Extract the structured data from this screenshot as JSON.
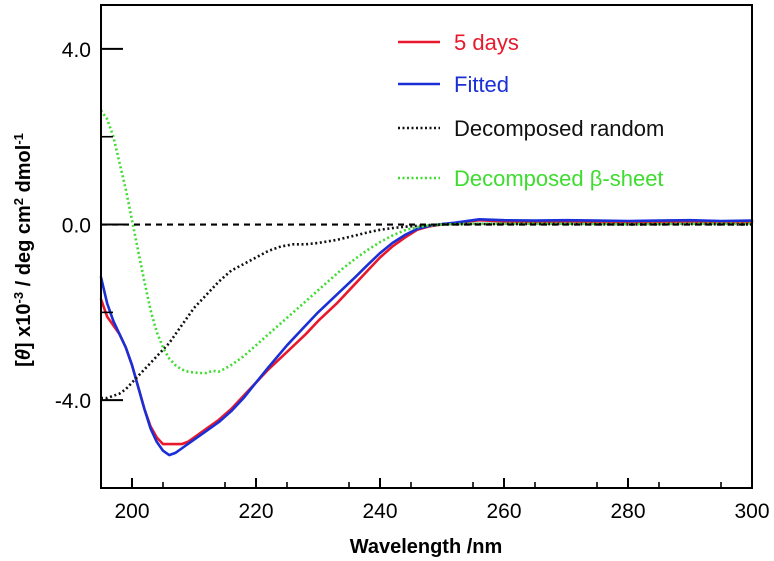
{
  "chart_data": {
    "type": "line",
    "xlabel": "Wavelength /nm",
    "ylabel_parts": {
      "bracket_open": "[",
      "theta": "θ",
      "after_theta": "] x10",
      "exp1": "-3",
      "middle": " / deg cm",
      "exp2": "2",
      "tail": " dmol",
      "exp3": "-1"
    },
    "xlim": [
      195,
      300
    ],
    "ylim": [
      -6.0,
      5.0
    ],
    "x_ticks": [
      200,
      220,
      240,
      260,
      280,
      300
    ],
    "x_tick_labels": [
      "200",
      "220",
      "240",
      "260",
      "280",
      "300"
    ],
    "y_ticks": [
      4.0,
      0.0,
      -4.0
    ],
    "y_tick_labels": [
      "4.0",
      "0.0",
      "-4.0"
    ],
    "zero_line": true,
    "legend_position": "top-right",
    "series": [
      {
        "name": "5 days",
        "color": "#e8192c",
        "style": "solid",
        "x": [
          195,
          196,
          197,
          198,
          199,
          200,
          201,
          202,
          203,
          204,
          205,
          206,
          207,
          208,
          209,
          210,
          212,
          214,
          216,
          218,
          220,
          222,
          225,
          228,
          230,
          233,
          236,
          238,
          240,
          242,
          244,
          246,
          248,
          250,
          252,
          256,
          260,
          265,
          270,
          275,
          280,
          285,
          290,
          295,
          300
        ],
        "y": [
          -1.7,
          -2.1,
          -2.3,
          -2.5,
          -2.8,
          -3.2,
          -3.7,
          -4.2,
          -4.6,
          -4.85,
          -5.0,
          -5.0,
          -5.0,
          -5.0,
          -4.95,
          -4.85,
          -4.65,
          -4.45,
          -4.2,
          -3.9,
          -3.6,
          -3.3,
          -2.9,
          -2.5,
          -2.2,
          -1.8,
          -1.35,
          -1.05,
          -0.75,
          -0.5,
          -0.3,
          -0.12,
          -0.04,
          0.0,
          0.03,
          0.1,
          0.07,
          0.06,
          0.07,
          0.06,
          0.05,
          0.06,
          0.07,
          0.05,
          0.05
        ]
      },
      {
        "name": "Fitted",
        "color": "#1a2fd6",
        "style": "solid",
        "x": [
          195,
          196,
          197,
          198,
          199,
          200,
          201,
          202,
          203,
          204,
          205,
          206,
          207,
          208,
          209,
          210,
          212,
          214,
          216,
          218,
          220,
          222,
          225,
          228,
          230,
          233,
          236,
          238,
          240,
          242,
          244,
          246,
          248,
          250,
          252,
          256,
          260,
          265,
          270,
          275,
          280,
          285,
          290,
          295,
          300
        ],
        "y": [
          -1.2,
          -1.8,
          -2.2,
          -2.5,
          -2.8,
          -3.2,
          -3.7,
          -4.2,
          -4.65,
          -4.95,
          -5.15,
          -5.25,
          -5.2,
          -5.1,
          -5.0,
          -4.9,
          -4.7,
          -4.5,
          -4.25,
          -3.95,
          -3.6,
          -3.25,
          -2.75,
          -2.3,
          -2.0,
          -1.6,
          -1.2,
          -0.92,
          -0.65,
          -0.42,
          -0.24,
          -0.1,
          -0.03,
          0.01,
          0.04,
          0.12,
          0.1,
          0.09,
          0.1,
          0.09,
          0.08,
          0.09,
          0.1,
          0.08,
          0.09
        ]
      },
      {
        "name": "Decomposed random",
        "color": "#111111",
        "style": "dotted",
        "x": [
          195,
          196,
          197,
          198,
          199,
          200,
          201,
          202,
          203,
          204,
          205,
          206,
          207,
          208,
          209,
          210,
          212,
          214,
          216,
          218,
          220,
          222,
          224,
          226,
          228,
          230,
          233,
          236,
          238,
          240,
          242,
          244,
          246,
          248,
          250,
          255,
          260,
          270,
          280,
          290,
          300
        ],
        "y": [
          -3.95,
          -3.95,
          -3.9,
          -3.85,
          -3.75,
          -3.6,
          -3.45,
          -3.3,
          -3.15,
          -3.0,
          -2.85,
          -2.7,
          -2.5,
          -2.3,
          -2.1,
          -1.9,
          -1.6,
          -1.3,
          -1.05,
          -0.9,
          -0.75,
          -0.6,
          -0.5,
          -0.45,
          -0.45,
          -0.42,
          -0.35,
          -0.25,
          -0.18,
          -0.12,
          -0.08,
          -0.05,
          -0.03,
          -0.01,
          0.0,
          0.01,
          0.01,
          0.01,
          0.0,
          0.01,
          0.0
        ]
      },
      {
        "name": "Decomposed β-sheet",
        "color": "#3ddc2e",
        "style": "dotted",
        "x": [
          195,
          196,
          197,
          198,
          199,
          200,
          201,
          202,
          203,
          204,
          205,
          206,
          207,
          208,
          209,
          210,
          211,
          212,
          213,
          214,
          215,
          216,
          218,
          220,
          222,
          224,
          226,
          228,
          230,
          232,
          234,
          236,
          238,
          240,
          242,
          244,
          246,
          248,
          250,
          255,
          260,
          270,
          280,
          290,
          300
        ],
        "y": [
          2.6,
          2.4,
          2.0,
          1.4,
          0.8,
          0.1,
          -0.6,
          -1.3,
          -1.95,
          -2.45,
          -2.8,
          -3.05,
          -3.2,
          -3.3,
          -3.35,
          -3.37,
          -3.38,
          -3.38,
          -3.33,
          -3.35,
          -3.28,
          -3.2,
          -3.0,
          -2.75,
          -2.5,
          -2.25,
          -2.0,
          -1.75,
          -1.5,
          -1.25,
          -1.0,
          -0.78,
          -0.58,
          -0.4,
          -0.25,
          -0.13,
          -0.06,
          -0.02,
          0.0,
          0.02,
          0.02,
          0.02,
          0.01,
          0.02,
          0.02
        ]
      }
    ]
  }
}
